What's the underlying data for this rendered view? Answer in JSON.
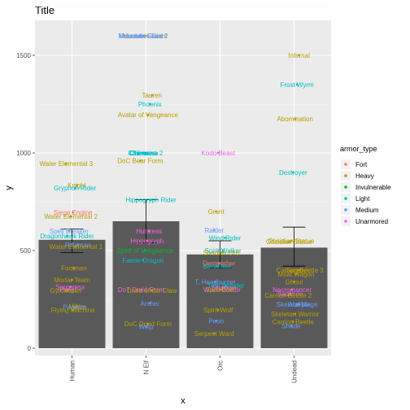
{
  "chart_data": {
    "type": "bar",
    "title": "Title",
    "xlabel": "x",
    "ylabel": "y",
    "ylim": [
      -50,
      1700
    ],
    "yticks": [
      0,
      500,
      1000,
      1500
    ],
    "grid": true,
    "background": "#ebebeb",
    "bar_color": "#595959",
    "categories": [
      "Human",
      "N Elf",
      "Orc",
      "Undead"
    ],
    "values": [
      555,
      650,
      480,
      515
    ],
    "error_bars": [
      [
        490,
        610
      ],
      [
        540,
        760
      ],
      [
        410,
        550
      ],
      [
        420,
        620
      ]
    ],
    "legend": {
      "title": "armor_type",
      "position": "right",
      "entries": [
        {
          "name": "Fort",
          "color": "#F8766D"
        },
        {
          "name": "Heavy",
          "color": "#B79F00"
        },
        {
          "name": "Invulnerable",
          "color": "#00BA38"
        },
        {
          "name": "Light",
          "color": "#00BFC4"
        },
        {
          "name": "Medium",
          "color": "#619CFF"
        },
        {
          "name": "Unarmored",
          "color": "#F564E3"
        }
      ]
    },
    "points": [
      {
        "cat": 0,
        "y": 945,
        "label": "Water Elemental 3",
        "armor": "Heavy"
      },
      {
        "cat": 0,
        "y": 835,
        "label": "Knight",
        "armor": "Heavy"
      },
      {
        "cat": 0,
        "y": 820,
        "label": "Gryphon Rider",
        "armor": "Light"
      },
      {
        "cat": 0,
        "y": 695,
        "label": "Siege Engine",
        "armor": "Fort"
      },
      {
        "cat": 0,
        "y": 675,
        "label": "Water Elemental 2",
        "armor": "Heavy"
      },
      {
        "cat": 0,
        "y": 600,
        "label": "Spell Breaker",
        "armor": "Medium"
      },
      {
        "cat": 0,
        "y": 575,
        "label": "Dragonhawk Rider",
        "armor": "Light"
      },
      {
        "cat": 0,
        "y": 530,
        "label": "Rifleman",
        "armor": "Medium"
      },
      {
        "cat": 0,
        "y": 520,
        "label": "Water Elemental 1",
        "armor": "Heavy"
      },
      {
        "cat": 0,
        "y": 410,
        "label": "Footman",
        "armor": "Heavy"
      },
      {
        "cat": 0,
        "y": 350,
        "label": "Mortar Team",
        "armor": "Heavy"
      },
      {
        "cat": 0,
        "y": 315,
        "label": "Sorceress",
        "armor": "Unarmored"
      },
      {
        "cat": 0,
        "y": 300,
        "label": "Priest",
        "armor": "Unarmored"
      },
      {
        "cat": 0,
        "y": 295,
        "label": "Gyrocopter",
        "armor": "Heavy"
      },
      {
        "cat": 0,
        "y": 215,
        "label": "Militia",
        "armor": "Heavy"
      },
      {
        "cat": 0,
        "y": 210,
        "label": "Peasant",
        "armor": "Medium"
      },
      {
        "cat": 0,
        "y": 195,
        "label": "Flying Machine",
        "armor": "Heavy"
      },
      {
        "cat": 1,
        "y": 1600,
        "label": "Mountain Giant",
        "armor": "Heavy"
      },
      {
        "cat": 1,
        "y": 1600,
        "label": "Mountain Giant 2",
        "armor": "Medium"
      },
      {
        "cat": 1,
        "y": 1600,
        "label": "Mountain Giant",
        "armor": "Medium"
      },
      {
        "cat": 1,
        "y": 1295,
        "label": "Tauren",
        "armor": "Heavy"
      },
      {
        "cat": 1,
        "y": 1250,
        "label": "Phoenix",
        "armor": "Light"
      },
      {
        "cat": 1,
        "y": 1195,
        "label": "Avatar of Vengeance",
        "armor": "Heavy"
      },
      {
        "cat": 1,
        "y": 1000,
        "label": "Chimaera 2",
        "armor": "Light"
      },
      {
        "cat": 1,
        "y": 1000,
        "label": "Chimaera",
        "armor": "Light"
      },
      {
        "cat": 1,
        "y": 1000,
        "label": "Chimaera",
        "armor": "Light"
      },
      {
        "cat": 1,
        "y": 960,
        "label": "DoC Bear Form",
        "armor": "Heavy"
      },
      {
        "cat": 1,
        "y": 760,
        "label": "Hippogryph Rider",
        "armor": "Light"
      },
      {
        "cat": 1,
        "y": 600,
        "label": "Huntress",
        "armor": "Unarmored"
      },
      {
        "cat": 1,
        "y": 550,
        "label": "Hippogryph",
        "armor": "Unarmored"
      },
      {
        "cat": 1,
        "y": 500,
        "label": "Spirit of Vengeance",
        "armor": "Invulnerable"
      },
      {
        "cat": 1,
        "y": 450,
        "label": "Faerie Dragon",
        "armor": "Light"
      },
      {
        "cat": 1,
        "y": 300,
        "label": "DoT Druid Form",
        "armor": "Unarmored"
      },
      {
        "cat": 1,
        "y": 295,
        "label": "Druid of the Claw",
        "armor": "Heavy"
      },
      {
        "cat": 1,
        "y": 230,
        "label": "Archer",
        "armor": "Medium"
      },
      {
        "cat": 1,
        "y": 125,
        "label": "DoC Druid Form",
        "armor": "Heavy"
      },
      {
        "cat": 1,
        "y": 110,
        "label": "Wisp",
        "armor": "Medium"
      },
      {
        "cat": 2,
        "y": 1000,
        "label": "Kodo Beast",
        "armor": "Unarmored"
      },
      {
        "cat": 2,
        "y": 700,
        "label": "Grunt",
        "armor": "Heavy"
      },
      {
        "cat": 2,
        "y": 605,
        "label": "Raider",
        "armor": "Medium"
      },
      {
        "cat": 2,
        "y": 565,
        "label": "Wind Rider",
        "armor": "Light"
      },
      {
        "cat": 2,
        "y": 500,
        "label": "Spirit Walker",
        "armor": "Light"
      },
      {
        "cat": 2,
        "y": 490,
        "label": "Shadow Orb",
        "armor": "Heavy"
      },
      {
        "cat": 2,
        "y": 435,
        "label": "Demolisher",
        "armor": "Fort"
      },
      {
        "cat": 2,
        "y": 420,
        "label": "Berserker",
        "armor": "Light"
      },
      {
        "cat": 2,
        "y": 340,
        "label": "T. Headhunter",
        "armor": "Medium"
      },
      {
        "cat": 2,
        "y": 320,
        "label": "Troll Batrider",
        "armor": "Light"
      },
      {
        "cat": 2,
        "y": 310,
        "label": "Shaman",
        "armor": "Unarmored"
      },
      {
        "cat": 2,
        "y": 300,
        "label": "Witch Doctor",
        "armor": "Unarmored"
      },
      {
        "cat": 2,
        "y": 300,
        "label": "Spirit Wolf",
        "armor": "Heavy"
      },
      {
        "cat": 2,
        "y": 195,
        "label": "Spirit Wolf",
        "armor": "Heavy"
      },
      {
        "cat": 2,
        "y": 140,
        "label": "Peon",
        "armor": "Medium"
      },
      {
        "cat": 2,
        "y": 75,
        "label": "Serpent Ward",
        "armor": "Heavy"
      },
      {
        "cat": 3,
        "y": 1500,
        "label": "Infernal",
        "armor": "Heavy"
      },
      {
        "cat": 3,
        "y": 1350,
        "label": "Frost Wyrm",
        "armor": "Light"
      },
      {
        "cat": 3,
        "y": 1175,
        "label": "Abomination",
        "armor": "Heavy"
      },
      {
        "cat": 3,
        "y": 900,
        "label": "Destroyer",
        "armor": "Light"
      },
      {
        "cat": 3,
        "y": 550,
        "label": "Obsidian Statue",
        "armor": "Heavy"
      },
      {
        "cat": 3,
        "y": 545,
        "label": "Obsidian Statue",
        "armor": "Heavy"
      },
      {
        "cat": 3,
        "y": 400,
        "label": "Carrion Beetle 3",
        "armor": "Heavy"
      },
      {
        "cat": 3,
        "y": 400,
        "label": "Gargoyle",
        "armor": "Heavy"
      },
      {
        "cat": 3,
        "y": 380,
        "label": "Meat Wagon",
        "armor": "Heavy"
      },
      {
        "cat": 3,
        "y": 340,
        "label": "Ghoul",
        "armor": "Heavy"
      },
      {
        "cat": 3,
        "y": 300,
        "label": "Necromancer",
        "armor": "Unarmored"
      },
      {
        "cat": 3,
        "y": 280,
        "label": "Banshee",
        "armor": "Unarmored"
      },
      {
        "cat": 3,
        "y": 270,
        "label": "Carrion Beetle 2",
        "armor": "Heavy"
      },
      {
        "cat": 3,
        "y": 225,
        "label": "Acolyte",
        "armor": "Medium"
      },
      {
        "cat": 3,
        "y": 225,
        "label": "Skeletal Mage",
        "armor": "Medium"
      },
      {
        "cat": 3,
        "y": 175,
        "label": "Skeleton Warrior",
        "armor": "Heavy"
      },
      {
        "cat": 3,
        "y": 135,
        "label": "Carrion Beetle",
        "armor": "Heavy"
      },
      {
        "cat": 3,
        "y": 115,
        "label": "Shade",
        "armor": "Medium"
      }
    ]
  }
}
